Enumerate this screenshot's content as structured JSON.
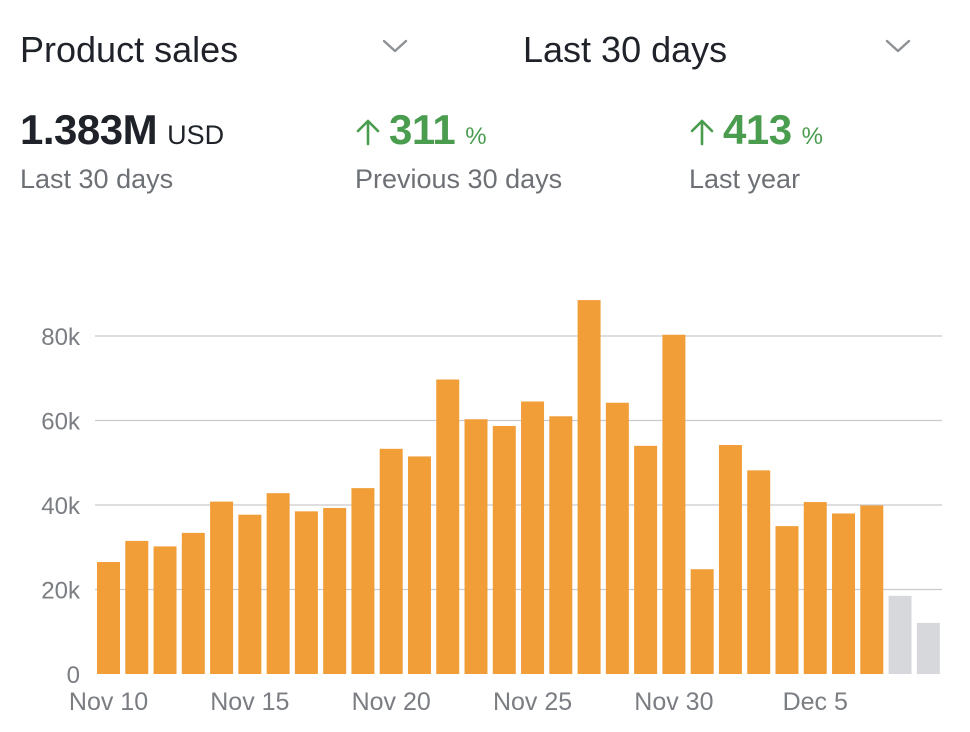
{
  "header": {
    "metric_label": "Product sales",
    "range_label": "Last 30 days"
  },
  "stats": {
    "total": {
      "value": "1.383M",
      "unit": "USD",
      "caption": "Last 30 days"
    },
    "previous": {
      "value": "311",
      "unit": "%",
      "caption": "Previous 30 days",
      "trend": "up"
    },
    "year": {
      "value": "413",
      "unit": "%",
      "caption": "Last year",
      "trend": "up"
    }
  },
  "colors": {
    "bar": "#f19e38",
    "bar_partial": "#d6d8dc",
    "positive": "#4a9c4e",
    "grid": "#c9cbcf"
  },
  "icons": {
    "selector_chevron": "chevron-down-icon",
    "trend_up": "arrow-up-icon"
  },
  "chart_data": {
    "type": "bar",
    "x": [
      "Nov 10",
      "Nov 11",
      "Nov 12",
      "Nov 13",
      "Nov 14",
      "Nov 15",
      "Nov 16",
      "Nov 17",
      "Nov 18",
      "Nov 19",
      "Nov 20",
      "Nov 21",
      "Nov 22",
      "Nov 23",
      "Nov 24",
      "Nov 25",
      "Nov 26",
      "Nov 27",
      "Nov 28",
      "Nov 29",
      "Nov 30",
      "Dec 1",
      "Dec 2",
      "Dec 3",
      "Dec 4",
      "Dec 5",
      "Dec 6",
      "Dec 7",
      "Dec 8",
      "Dec 9"
    ],
    "values": [
      26500,
      31500,
      30200,
      33400,
      40800,
      37700,
      42800,
      38500,
      39300,
      44000,
      53300,
      51500,
      69700,
      60300,
      58700,
      64500,
      61000,
      88500,
      64200,
      54000,
      80300,
      24800,
      54200,
      48200,
      35000,
      40700,
      38000,
      39900,
      18500,
      12100
    ],
    "partial_days": [
      "Dec 8",
      "Dec 9"
    ],
    "x_tick_labels": [
      "Nov 10",
      "Nov 15",
      "Nov 20",
      "Nov 25",
      "Nov 30",
      "Dec 5"
    ],
    "y_tick_labels": [
      "0",
      "20k",
      "40k",
      "60k",
      "80k"
    ],
    "y_ticks": [
      0,
      20000,
      40000,
      60000,
      80000
    ],
    "ylim": [
      0,
      90000
    ],
    "grid": true,
    "legend": "none",
    "xlabel": "",
    "ylabel": ""
  }
}
